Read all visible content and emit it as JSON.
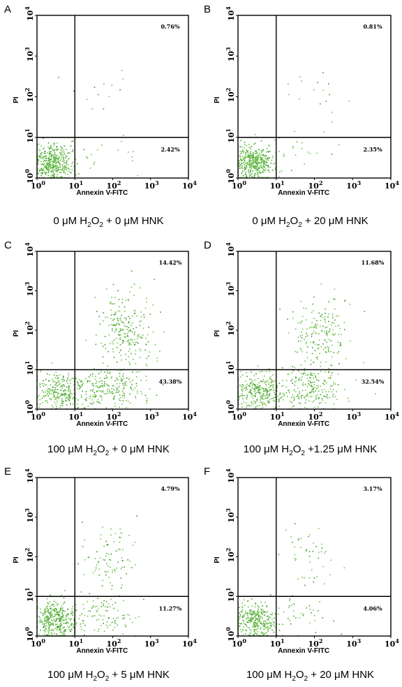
{
  "chart_data": [
    {
      "type": "scatter",
      "panel": "A",
      "xlabel": "Annexin V-FITC",
      "ylabel": "PI",
      "xscale": "log",
      "yscale": "log",
      "xlim": [
        1,
        10000
      ],
      "ylim": [
        1,
        10000
      ],
      "x_ticks": [
        "10",
        "10",
        "10",
        "10",
        "10"
      ],
      "x_tick_exps": [
        "0",
        "1",
        "2",
        "3",
        "4"
      ],
      "y_ticks": [
        "10",
        "10",
        "10",
        "10",
        "10"
      ],
      "y_tick_exps": [
        "0",
        "1",
        "2",
        "3",
        "4"
      ],
      "gate": {
        "x": 10,
        "y": 10
      },
      "quadrants": {
        "upper_right": "0.76%",
        "lower_right": "2.42%"
      },
      "caption": {
        "pre": "0 μM H",
        "sub1": "2",
        "mid": "O",
        "sub2": "2",
        "post": " + 0 μM HNK"
      },
      "populations": [
        {
          "n": 420,
          "xc": 2.6,
          "yc": 2.4,
          "xs": 0.25,
          "ys": 0.22
        },
        {
          "n": 20,
          "xc": 60,
          "yc": 3.5,
          "xs": 0.55,
          "ys": 0.3
        },
        {
          "n": 14,
          "xc": 90,
          "yc": 100,
          "xs": 0.45,
          "ys": 0.35
        }
      ]
    },
    {
      "type": "scatter",
      "panel": "B",
      "xlabel": "Annexin V-FITC",
      "ylabel": "PI",
      "xscale": "log",
      "yscale": "log",
      "xlim": [
        1,
        10000
      ],
      "ylim": [
        1,
        10000
      ],
      "x_ticks": [
        "10",
        "10",
        "10",
        "10",
        "10"
      ],
      "x_tick_exps": [
        "0",
        "1",
        "2",
        "3",
        "4"
      ],
      "y_ticks": [
        "10",
        "10",
        "10",
        "10",
        "10"
      ],
      "y_tick_exps": [
        "0",
        "1",
        "2",
        "3",
        "4"
      ],
      "gate": {
        "x": 10,
        "y": 10
      },
      "quadrants": {
        "upper_right": "0.81%",
        "lower_right": "2.35%"
      },
      "caption": {
        "pre": "0 μM H",
        "sub1": "2",
        "mid": "O",
        "sub2": "2",
        "post": " + 20 μM HNK"
      },
      "populations": [
        {
          "n": 420,
          "xc": 2.6,
          "yc": 2.4,
          "xs": 0.25,
          "ys": 0.22
        },
        {
          "n": 20,
          "xc": 50,
          "yc": 3.5,
          "xs": 0.55,
          "ys": 0.3
        },
        {
          "n": 16,
          "xc": 90,
          "yc": 120,
          "xs": 0.45,
          "ys": 0.4
        }
      ]
    },
    {
      "type": "scatter",
      "panel": "C",
      "xlabel": "Annexin V-FITC",
      "ylabel": "PI",
      "xscale": "log",
      "yscale": "log",
      "xlim": [
        1,
        10000
      ],
      "ylim": [
        1,
        10000
      ],
      "x_ticks": [
        "10",
        "10",
        "10",
        "10",
        "10"
      ],
      "x_tick_exps": [
        "0",
        "1",
        "2",
        "3",
        "4"
      ],
      "y_ticks": [
        "10",
        "10",
        "10",
        "10",
        "10"
      ],
      "y_tick_exps": [
        "0",
        "1",
        "2",
        "3",
        "4"
      ],
      "gate": {
        "x": 10,
        "y": 10
      },
      "quadrants": {
        "upper_right": "14.42%",
        "lower_right": "43.38%"
      },
      "caption": {
        "pre": "100 μM H",
        "sub1": "2",
        "mid": "O",
        "sub2": "2",
        "post": " + 0 μM HNK"
      },
      "populations": [
        {
          "n": 280,
          "xc": 4,
          "yc": 2.8,
          "xs": 0.4,
          "ys": 0.25
        },
        {
          "n": 200,
          "xc": 100,
          "yc": 3.3,
          "xs": 0.45,
          "ys": 0.25
        },
        {
          "n": 240,
          "xc": 220,
          "yc": 110,
          "xs": 0.35,
          "ys": 0.5
        }
      ]
    },
    {
      "type": "scatter",
      "panel": "D",
      "xlabel": "Annexin V-FITC",
      "ylabel": "PI",
      "xscale": "log",
      "yscale": "log",
      "xlim": [
        1,
        10000
      ],
      "ylim": [
        1,
        10000
      ],
      "x_ticks": [
        "10",
        "10",
        "10",
        "10",
        "10"
      ],
      "x_tick_exps": [
        "0",
        "1",
        "2",
        "3",
        "4"
      ],
      "y_ticks": [
        "10",
        "10",
        "10",
        "10",
        "10"
      ],
      "y_tick_exps": [
        "0",
        "1",
        "2",
        "3",
        "4"
      ],
      "gate": {
        "x": 10,
        "y": 10
      },
      "quadrants": {
        "upper_right": "11.68%",
        "lower_right": "32.54%"
      },
      "caption": {
        "pre": "100 μM H",
        "sub1": "2",
        "mid": "O",
        "sub2": "2",
        "post": " +1.25 μM HNK"
      },
      "populations": [
        {
          "n": 300,
          "xc": 3.5,
          "yc": 2.8,
          "xs": 0.35,
          "ys": 0.25
        },
        {
          "n": 200,
          "xc": 80,
          "yc": 3.3,
          "xs": 0.45,
          "ys": 0.25
        },
        {
          "n": 190,
          "xc": 150,
          "yc": 80,
          "xs": 0.35,
          "ys": 0.45
        }
      ]
    },
    {
      "type": "scatter",
      "panel": "E",
      "xlabel": "Annexin V-FITC",
      "ylabel": "PI",
      "xscale": "log",
      "yscale": "log",
      "xlim": [
        1,
        10000
      ],
      "ylim": [
        1,
        10000
      ],
      "x_ticks": [
        "10",
        "10",
        "10",
        "10",
        "10"
      ],
      "x_tick_exps": [
        "0",
        "1",
        "2",
        "3",
        "4"
      ],
      "y_ticks": [
        "10",
        "10",
        "10",
        "10",
        "10"
      ],
      "y_tick_exps": [
        "0",
        "1",
        "2",
        "3",
        "4"
      ],
      "gate": {
        "x": 10,
        "y": 10
      },
      "quadrants": {
        "upper_right": "4.79%",
        "lower_right": "11.27%"
      },
      "caption": {
        "pre": "100 μM H",
        "sub1": "2",
        "mid": "O",
        "sub2": "2",
        "post": " + 5 μM HNK"
      },
      "populations": [
        {
          "n": 380,
          "xc": 3,
          "yc": 2.5,
          "xs": 0.3,
          "ys": 0.25
        },
        {
          "n": 90,
          "xc": 60,
          "yc": 3.3,
          "xs": 0.45,
          "ys": 0.25
        },
        {
          "n": 90,
          "xc": 90,
          "yc": 80,
          "xs": 0.35,
          "ys": 0.4
        }
      ]
    },
    {
      "type": "scatter",
      "panel": "F",
      "xlabel": "Annexin V-FITC",
      "ylabel": "PI",
      "xscale": "log",
      "yscale": "log",
      "xlim": [
        1,
        10000
      ],
      "ylim": [
        1,
        10000
      ],
      "x_ticks": [
        "10",
        "10",
        "10",
        "10",
        "10"
      ],
      "x_tick_exps": [
        "0",
        "1",
        "2",
        "3",
        "4"
      ],
      "y_ticks": [
        "10",
        "10",
        "10",
        "10",
        "10"
      ],
      "y_tick_exps": [
        "0",
        "1",
        "2",
        "3",
        "4"
      ],
      "gate": {
        "x": 10,
        "y": 10
      },
      "quadrants": {
        "upper_right": "3.17%",
        "lower_right": "4.06%"
      },
      "caption": {
        "pre": "100 μM H",
        "sub1": "2",
        "mid": "O",
        "sub2": "2",
        "post": " + 20 μM HNK"
      },
      "populations": [
        {
          "n": 330,
          "xc": 2.7,
          "yc": 2.4,
          "xs": 0.27,
          "ys": 0.23
        },
        {
          "n": 40,
          "xc": 40,
          "yc": 3.5,
          "xs": 0.5,
          "ys": 0.3
        },
        {
          "n": 45,
          "xc": 70,
          "yc": 100,
          "xs": 0.3,
          "ys": 0.4
        }
      ]
    }
  ],
  "colors": {
    "dots": "#6cc24a",
    "dots_dense": "#3f9a2a",
    "frame": "#000000"
  }
}
